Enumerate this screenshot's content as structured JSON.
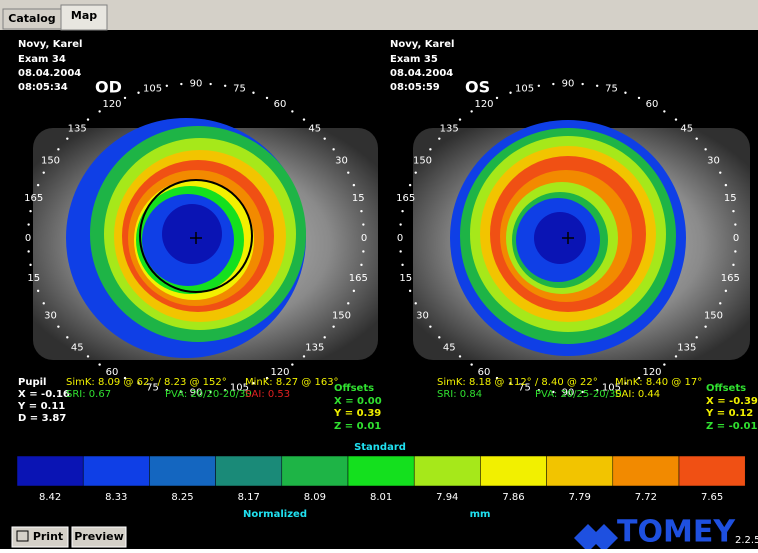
{
  "tabs": [
    "Catalog",
    "Map"
  ],
  "eyes": [
    {
      "patient": "Novy, Karel",
      "exam": "Exam 34",
      "date": "08.04.2004",
      "time": "08:05:34",
      "side": "OD",
      "ring_labels": [
        "0",
        "15",
        "30",
        "45",
        "60",
        "75",
        "90",
        "105",
        "120",
        "135",
        "150",
        "165",
        "0",
        "15",
        "30",
        "45",
        "60",
        "75",
        "90",
        "105",
        "120",
        "135",
        "150",
        "165"
      ],
      "pupil": {
        "title": "Pupil",
        "x": "X = -0.16",
        "y": "Y = 0.11",
        "d": "D = 3.87"
      },
      "simk": "SimK: 8.09 @ 62° / 8.23 @ 152°",
      "mink": "MinK: 8.27 @ 163°",
      "sri": "SRI: 0.67",
      "pva": "PVA: 20/20-20/30",
      "sai": "SAI: 0.53",
      "offsets": {
        "title": "Offsets",
        "x": "X = 0.00",
        "y": "Y = 0.39",
        "z": "Z = 0.01"
      }
    },
    {
      "patient": "Novy, Karel",
      "exam": "Exam 35",
      "date": "08.04.2004",
      "time": "08:05:59",
      "side": "OS",
      "ring_labels": [
        "0",
        "15",
        "30",
        "45",
        "60",
        "75",
        "90",
        "105",
        "120",
        "135",
        "150",
        "165",
        "0",
        "15",
        "30",
        "45",
        "60",
        "75",
        "90",
        "105",
        "120",
        "135",
        "150",
        "165"
      ],
      "simk": "SimK: 8.18 @ 112° / 8.40 @ 22°",
      "mink": "MinK: 8.40 @ 17°",
      "sri": "SRI: 0.84",
      "pva": "PVA: 20/25-20/30",
      "sai": "SAI: 0.44",
      "offsets": {
        "title": "Offsets",
        "x": "X = -0.39",
        "y": "Y = 0.12",
        "z": "Z = -0.01"
      }
    }
  ],
  "scale": {
    "title": "Standard",
    "mode": "Normalized",
    "unit": "mm",
    "labels": [
      "8.42",
      "8.33",
      "8.25",
      "8.17",
      "8.09",
      "8.01",
      "7.94",
      "7.86",
      "7.79",
      "7.72",
      "7.65"
    ],
    "colors": [
      "#0a14b4",
      "#0f3fe6",
      "#1466c0",
      "#1a8a78",
      "#1eb446",
      "#14e01e",
      "#a6e81a",
      "#f2f000",
      "#f2c400",
      "#f28a00",
      "#f05014"
    ]
  },
  "buttons": [
    "Print",
    "Preview"
  ],
  "logo": "TOMEY",
  "version": "2.2.5"
}
